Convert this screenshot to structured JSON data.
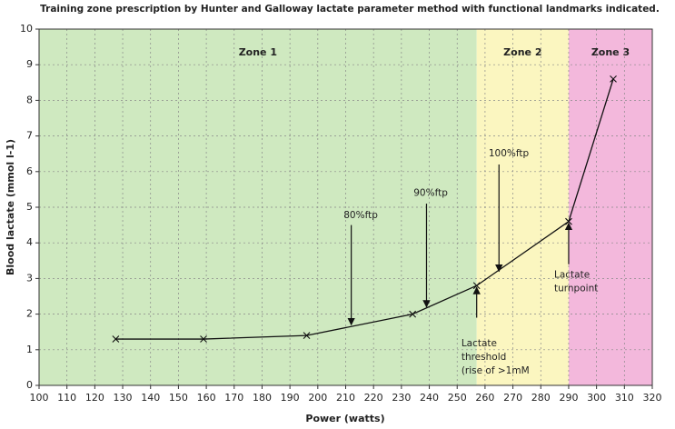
{
  "chart_data": {
    "type": "line",
    "title": "Training zone prescription by Hunter and Galloway lactate parameter method with functional landmarks indicated.",
    "x_label": "Power (watts)",
    "y_label": "Blood lactate (mmol l-1)",
    "x": [
      127.5,
      159,
      196,
      234,
      257,
      290,
      306
    ],
    "values": [
      1.3,
      1.3,
      1.4,
      2.0,
      2.8,
      4.6,
      8.6
    ],
    "color": "#111111",
    "xlim": [
      100,
      320
    ],
    "ylim": [
      0,
      10
    ],
    "xticks": [
      100,
      110,
      120,
      130,
      140,
      150,
      160,
      170,
      180,
      190,
      200,
      210,
      220,
      230,
      240,
      250,
      260,
      270,
      280,
      290,
      300,
      310,
      320
    ],
    "yticks": [
      0,
      1,
      2,
      3,
      4,
      5,
      6,
      7,
      8,
      9,
      10
    ],
    "grid": true,
    "zones": [
      {
        "label": "Zone 1",
        "from": 100,
        "to": 257,
        "color": "#cfe9c0"
      },
      {
        "label": "Zone 2",
        "from": 257,
        "to": 290,
        "color": "#fbf6c0"
      },
      {
        "label": "Zone 3",
        "from": 290,
        "to": 320,
        "color": "#f3b8dc"
      }
    ],
    "annotations": [
      [
        "80%ftp"
      ],
      [
        "90%ftp"
      ],
      [
        "100%ftp"
      ],
      [
        "Lactate",
        "threshold",
        "(rise of >1mM"
      ],
      [
        "Lactate",
        "turnpoint"
      ]
    ]
  }
}
